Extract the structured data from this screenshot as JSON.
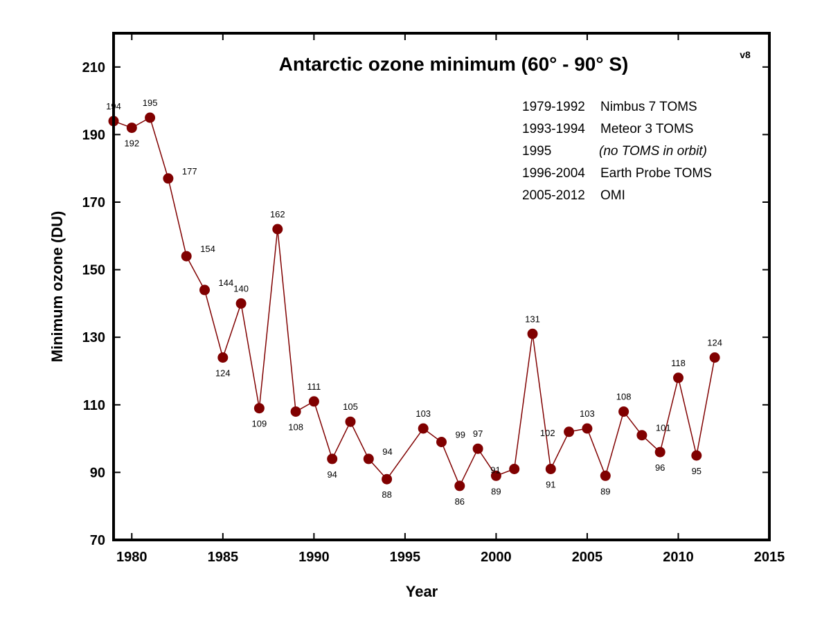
{
  "chart_data": {
    "type": "line",
    "title": "Antarctic ozone minimum (60° - 90° S)",
    "version_tag": "v8",
    "xlabel": "Year",
    "ylabel": "Minimum ozone (DU)",
    "xlim": [
      1979,
      2015
    ],
    "ylim": [
      70,
      220
    ],
    "x_ticks": [
      1980,
      1985,
      1990,
      1995,
      2000,
      2005,
      2010,
      2015
    ],
    "y_ticks": [
      70,
      90,
      110,
      130,
      150,
      170,
      190,
      210
    ],
    "grid": false,
    "series": [
      {
        "color": "#800000",
        "x": [
          1979,
          1980,
          1981,
          1982,
          1983,
          1984,
          1985,
          1986,
          1987,
          1988,
          1989,
          1990,
          1991,
          1992,
          1993,
          1994,
          1996,
          1997,
          1998,
          1999,
          2000,
          2001,
          2002,
          2003,
          2004,
          2005,
          2006,
          2007,
          2008,
          2009,
          2010,
          2011,
          2012
        ],
        "values": [
          194,
          192,
          195,
          177,
          154,
          144,
          124,
          140,
          109,
          162,
          108,
          111,
          94,
          105,
          94,
          88,
          103,
          99,
          86,
          97,
          89,
          91,
          131,
          91,
          102,
          103,
          89,
          108,
          101,
          96,
          118,
          95,
          124
        ]
      }
    ],
    "legend_entries": [
      {
        "years": "1979-1992",
        "instrument": "Nimbus 7 TOMS"
      },
      {
        "years": "1993-1994",
        "instrument": "Meteor 3 TOMS"
      },
      {
        "years": "1995",
        "instrument": "(no TOMS in orbit)"
      },
      {
        "years": "1996-2004",
        "instrument": "Earth Probe TOMS"
      },
      {
        "years": "2005-2012",
        "instrument": "OMI"
      }
    ],
    "legend_position": "top-right"
  }
}
